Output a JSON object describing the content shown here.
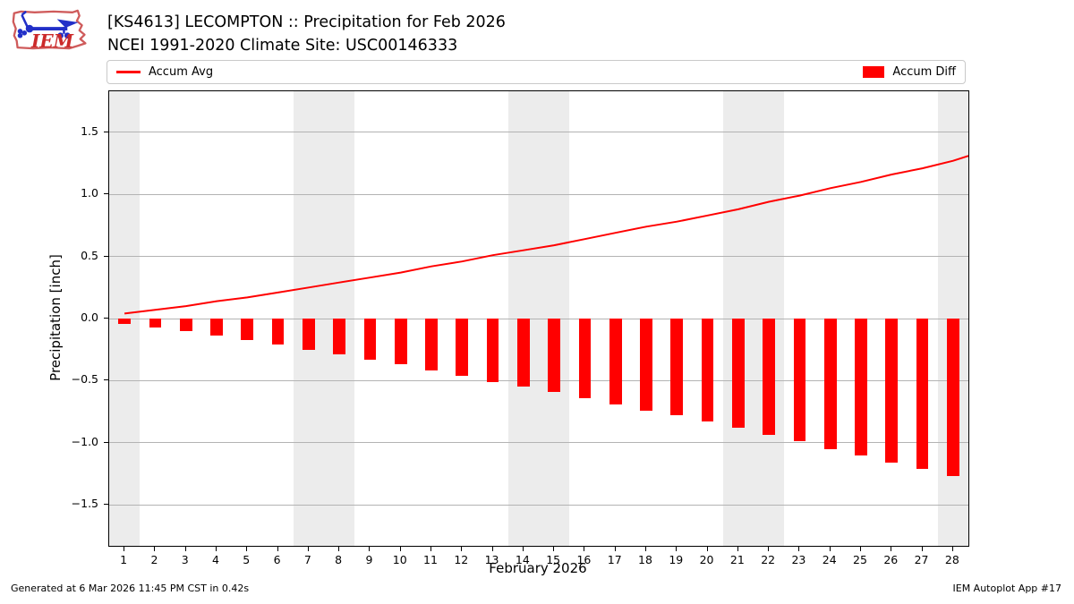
{
  "logo": {
    "text": "IEM"
  },
  "footer": {
    "left": "Generated at 6 Mar 2026 11:45 PM CST in 0.42s",
    "right": "IEM Autoplot App #17"
  },
  "colors": {
    "accent_red": "#ff0000",
    "weekend_band": "#ececec",
    "gridline": "#b3b3b3",
    "axis": "#000000",
    "legend_border": "#c9c9c9"
  },
  "chart_data": {
    "type": "combo",
    "title": "[KS4613] LECOMPTON :: Precipitation for Feb 2026",
    "subtitle": "NCEI 1991-2020 Climate Site: USC00146333",
    "xlabel": "February 2026",
    "ylabel": "Precipitation [inch]",
    "grid": "horizontal",
    "legend_position": "top",
    "x_days": [
      1,
      2,
      3,
      4,
      5,
      6,
      7,
      8,
      9,
      10,
      11,
      12,
      13,
      14,
      15,
      16,
      17,
      18,
      19,
      20,
      21,
      22,
      23,
      24,
      25,
      26,
      27,
      28
    ],
    "xlim_days": [
      0.5,
      28.5
    ],
    "ylim": [
      -1.83,
      1.83
    ],
    "yticks": [
      1.5,
      1.0,
      0.5,
      0.0,
      -0.5,
      -1.0,
      -1.5
    ],
    "weekend_bands_days": [
      [
        0.5,
        1.5
      ],
      [
        6.5,
        8.5
      ],
      [
        13.5,
        15.5
      ],
      [
        20.5,
        22.5
      ],
      [
        27.5,
        28.5
      ]
    ],
    "series": [
      {
        "name": "Accum Avg",
        "type": "line",
        "color": "#ff0000",
        "values": [
          0.04,
          0.07,
          0.1,
          0.14,
          0.17,
          0.21,
          0.25,
          0.29,
          0.33,
          0.37,
          0.42,
          0.46,
          0.51,
          0.55,
          0.59,
          0.64,
          0.69,
          0.74,
          0.78,
          0.83,
          0.88,
          0.94,
          0.99,
          1.05,
          1.1,
          1.16,
          1.21,
          1.27
        ],
        "value_at_right_edge": 1.31
      },
      {
        "name": "Accum Diff",
        "type": "bar",
        "color": "#ff0000",
        "bar_width_days": 0.4,
        "values": [
          -0.04,
          -0.07,
          -0.1,
          -0.14,
          -0.17,
          -0.21,
          -0.25,
          -0.29,
          -0.33,
          -0.37,
          -0.42,
          -0.46,
          -0.51,
          -0.55,
          -0.59,
          -0.64,
          -0.69,
          -0.74,
          -0.78,
          -0.83,
          -0.88,
          -0.94,
          -0.99,
          -1.05,
          -1.1,
          -1.16,
          -1.21,
          -1.27
        ]
      }
    ]
  }
}
